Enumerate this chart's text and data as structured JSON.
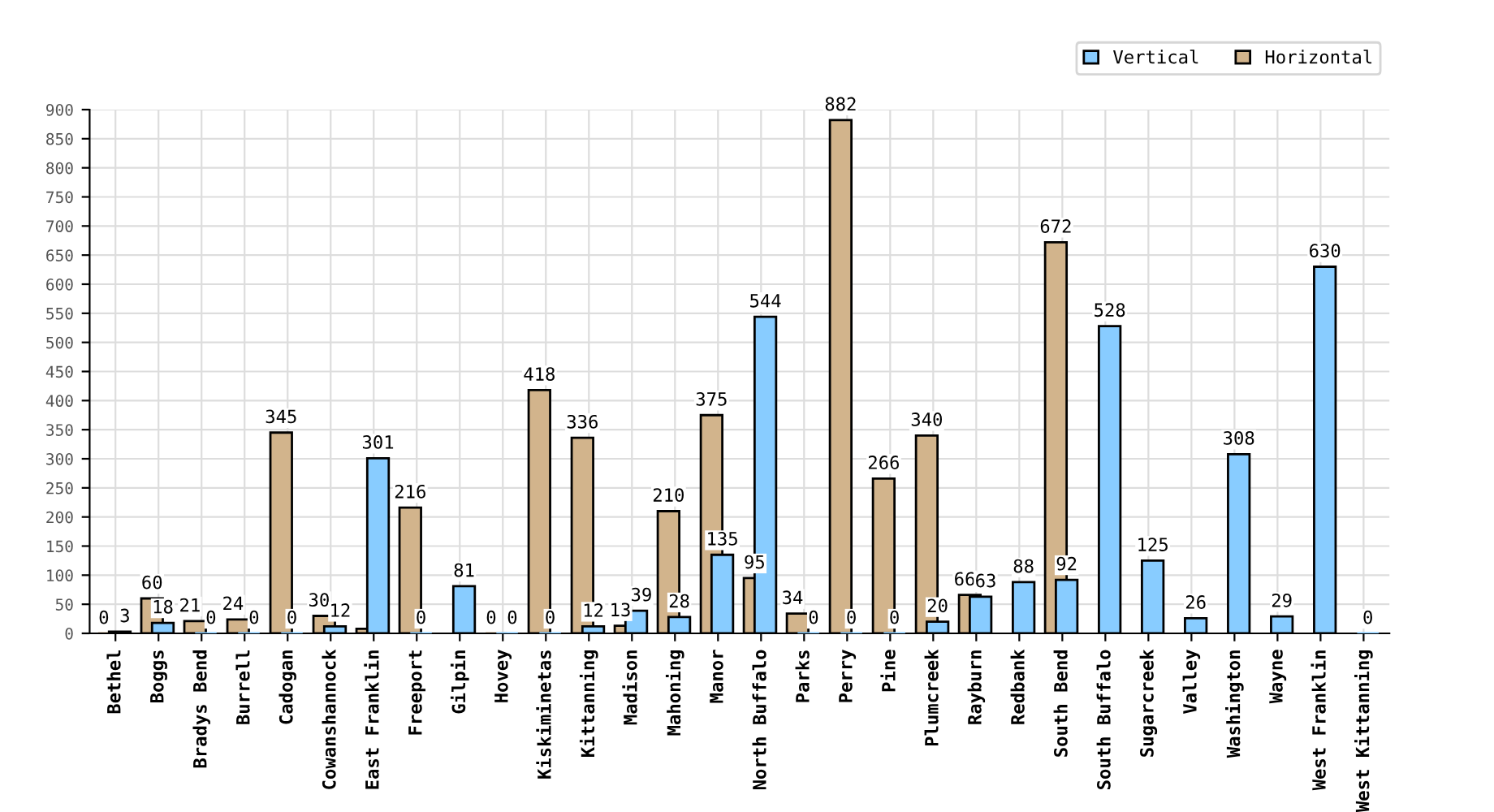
{
  "chart_data": {
    "type": "bar",
    "categories": [
      "Bethel",
      "Boggs",
      "Bradys Bend",
      "Burrell",
      "Cadogan",
      "Cowanshannock",
      "East Franklin",
      "Freeport",
      "Gilpin",
      "Hovey",
      "Kiskiminetas",
      "Kittanning",
      "Madison",
      "Mahoning",
      "Manor",
      "North Buffalo",
      "Parks",
      "Perry",
      "Pine",
      "Plumcreek",
      "Rayburn",
      "Redbank",
      "South Bend",
      "South Buffalo",
      "Sugarcreek",
      "Valley",
      "Washington",
      "Wayne",
      "West Franklin",
      "West Kittanning"
    ],
    "series": [
      {
        "name": "Horizontal",
        "color": "#d2b48c",
        "values": [
          0,
          60,
          21,
          24,
          345,
          30,
          8,
          216,
          null,
          0,
          418,
          336,
          13,
          210,
          375,
          95,
          34,
          882,
          266,
          340,
          66,
          null,
          672,
          null,
          null,
          null,
          null,
          null,
          null,
          null
        ],
        "value_labels": [
          "0",
          "60",
          "21",
          "24",
          "345",
          "30",
          null,
          "216",
          null,
          "0",
          "418",
          "336",
          "13",
          "210",
          "375",
          "95",
          "34",
          "882",
          "266",
          "340",
          "66",
          null,
          "672",
          null,
          null,
          null,
          null,
          null,
          null,
          null
        ]
      },
      {
        "name": "Vertical",
        "color": "#88ccff",
        "values": [
          3,
          18,
          0,
          0,
          0,
          12,
          301,
          0,
          81,
          0,
          0,
          12,
          39,
          28,
          135,
          544,
          0,
          0,
          0,
          20,
          63,
          88,
          92,
          528,
          125,
          26,
          308,
          29,
          630,
          0
        ],
        "value_labels": [
          "3",
          "18",
          "0",
          "0",
          "0",
          "12",
          "301",
          "0",
          "81",
          "0",
          "0",
          "12",
          "39",
          "28",
          "135",
          "544",
          "0",
          "0",
          "0",
          "20",
          "63",
          "88",
          "92",
          "528",
          "125",
          "26",
          "308",
          "29",
          "630",
          "0"
        ]
      }
    ],
    "ylim": [
      0,
      900
    ],
    "yticks": [
      0,
      50,
      100,
      150,
      200,
      250,
      300,
      350,
      400,
      450,
      500,
      550,
      600,
      650,
      700,
      750,
      800,
      850,
      900
    ],
    "grid": true,
    "legend": "top right"
  }
}
